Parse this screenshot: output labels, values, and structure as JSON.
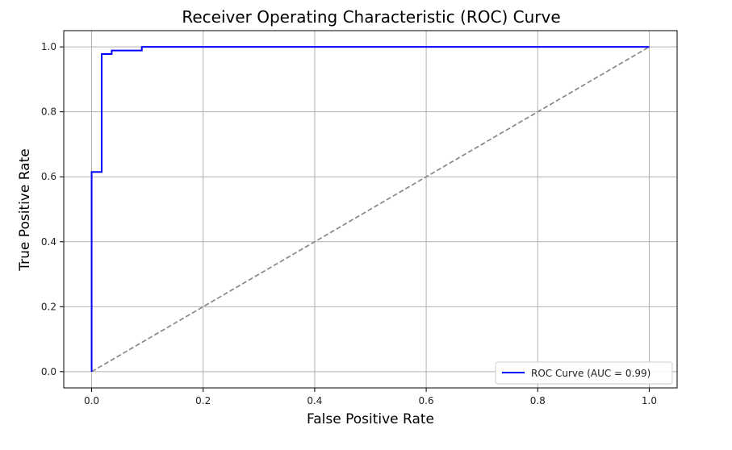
{
  "chart_data": {
    "type": "line",
    "title": "Receiver Operating Characteristic (ROC) Curve",
    "xlabel": "False Positive Rate",
    "ylabel": "True Positive Rate",
    "xlim": [
      -0.05,
      1.05
    ],
    "ylim": [
      -0.05,
      1.05
    ],
    "x_ticks": [
      0.0,
      0.2,
      0.4,
      0.6,
      0.8,
      1.0
    ],
    "x_tick_labels": [
      "0.0",
      "0.2",
      "0.4",
      "0.6",
      "0.8",
      "1.0"
    ],
    "y_ticks": [
      0.0,
      0.2,
      0.4,
      0.6,
      0.8,
      1.0
    ],
    "y_tick_labels": [
      "0.0",
      "0.2",
      "0.4",
      "0.6",
      "0.8",
      "1.0"
    ],
    "grid": true,
    "legend_position": "lower-right",
    "series": [
      {
        "name": "ROC Curve (AUC = 0.99)",
        "color": "#0000ff",
        "style": "solid",
        "x": [
          0.0,
          0.0,
          0.0,
          0.018,
          0.018,
          0.036,
          0.036,
          0.09,
          0.09,
          1.0
        ],
        "y": [
          0.0,
          0.0,
          0.615,
          0.615,
          0.978,
          0.978,
          0.989,
          0.989,
          1.0,
          1.0
        ]
      },
      {
        "name": "",
        "color": "#888888",
        "style": "dashed",
        "x": [
          0.0,
          1.0
        ],
        "y": [
          0.0,
          1.0
        ]
      }
    ]
  }
}
